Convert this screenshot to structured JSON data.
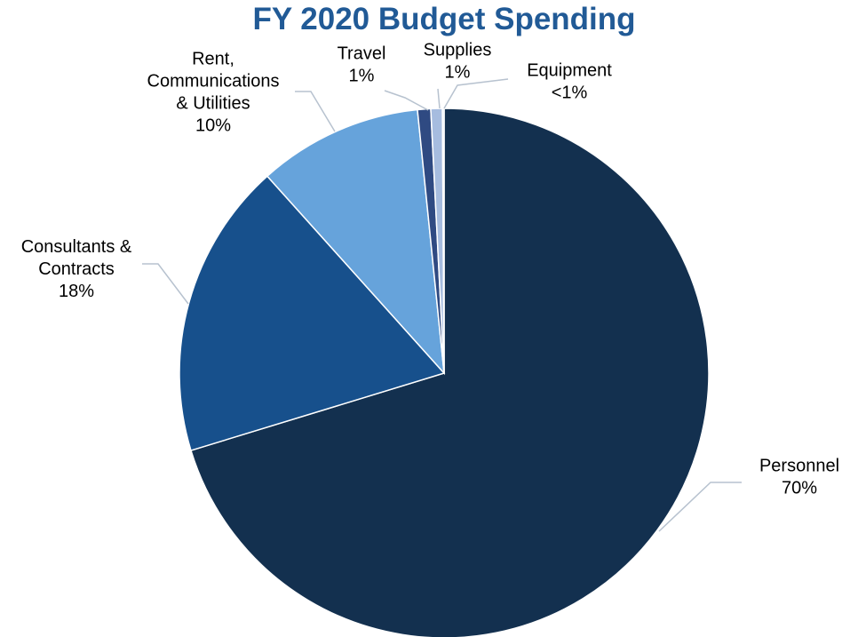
{
  "chart_data": {
    "type": "pie",
    "title": "FY 2020 Budget Spending",
    "slices": [
      {
        "name": "Personnel",
        "label_lines": [
          "Personnel",
          "70%"
        ],
        "percent_label": "70%",
        "value": 70.0,
        "color": "#13304f"
      },
      {
        "name": "Consultants & Contracts",
        "label_lines": [
          "Consultants &",
          "Contracts",
          "18%"
        ],
        "percent_label": "18%",
        "value": 18.0,
        "color": "#17508c"
      },
      {
        "name": "Rent, Communications & Utilities",
        "label_lines": [
          "Rent,",
          "Communications",
          "& Utilities",
          "10%"
        ],
        "percent_label": "10%",
        "value": 10.0,
        "color": "#66a3db"
      },
      {
        "name": "Travel",
        "label_lines": [
          "Travel",
          "1%"
        ],
        "percent_label": "1%",
        "value": 0.8,
        "color": "#2f4a82"
      },
      {
        "name": "Supplies",
        "label_lines": [
          "Supplies",
          "1%"
        ],
        "percent_label": "1%",
        "value": 0.7,
        "color": "#a6bcdf"
      },
      {
        "name": "Equipment",
        "label_lines": [
          "Equipment",
          "<1%"
        ],
        "percent_label": "<1%",
        "value": 0.1,
        "color": "#d4e0f0"
      }
    ],
    "start_angle_deg": 0,
    "direction": "clockwise",
    "legend": "none",
    "data_labels": "outside with leader lines"
  },
  "colors": {
    "title": "#215a96",
    "leader_line": "#b7c2cf",
    "background": "#ffffff"
  }
}
